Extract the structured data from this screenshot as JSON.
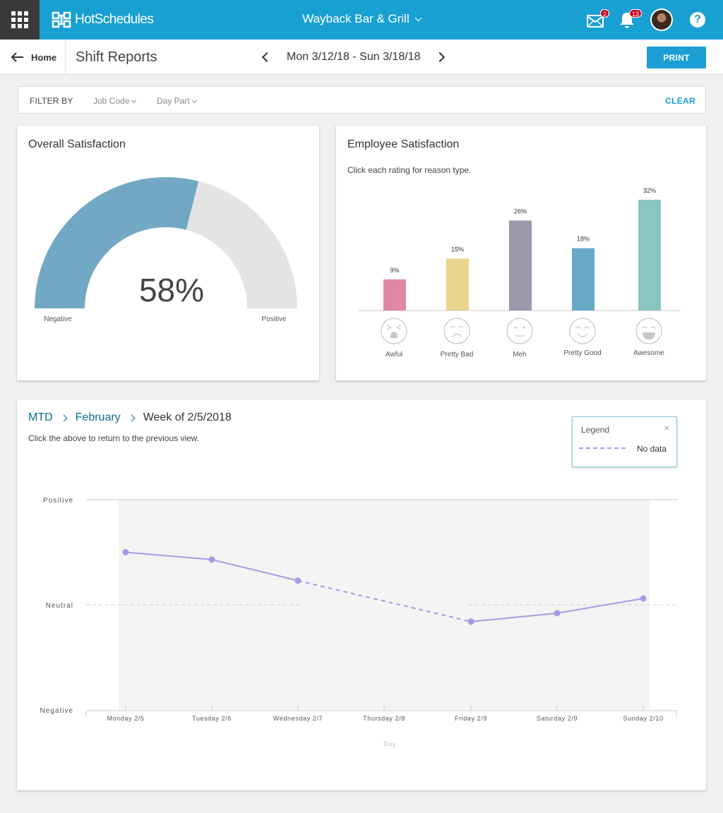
{
  "header": {
    "brand": "HotSchedules",
    "location": "Wayback Bar & Grill",
    "messages_badge": "2",
    "notifications_badge": "13",
    "help_label": "?"
  },
  "subheader": {
    "home_label": "Home",
    "page_title": "Shift Reports",
    "date_range": "Mon 3/12/18 - Sun 3/18/18",
    "print_label": "PRINT"
  },
  "filter": {
    "label": "FILTER BY",
    "job_code": "Job Code",
    "day_part": "Day Part",
    "clear_label": "CLEAR"
  },
  "overall": {
    "title": "Overall Satisfaction",
    "value_label": "58%",
    "value": 58,
    "left_label": "Negative",
    "right_label": "Positive",
    "fill_color": "#72a8c4",
    "track_color": "#e4e4e4"
  },
  "employee": {
    "title": "Employee Satisfaction",
    "hint": "Click each rating for reason type."
  },
  "trend": {
    "breadcrumb": [
      "MTD",
      "February"
    ],
    "current": "Week of 2/5/2018",
    "hint": "Click the above to return to the previous view.",
    "legend_title": "Legend",
    "legend_close": "×",
    "legend_item": "No data"
  },
  "chart_data": [
    {
      "type": "bar",
      "title": "Employee Satisfaction",
      "categories": [
        "Awful",
        "Pretty Bad",
        "Meh",
        "Pretty Good",
        "Awesome"
      ],
      "values": [
        9,
        15,
        26,
        18,
        32
      ],
      "value_labels": [
        "9%",
        "15%",
        "26%",
        "18%",
        "32%"
      ],
      "colors": [
        "#e087a4",
        "#ead38a",
        "#9b99ac",
        "#6aa8c8",
        "#8cc4c0"
      ],
      "icons": [
        "awful-face-icon",
        "pretty-bad-face-icon",
        "meh-face-icon",
        "pretty-good-face-icon",
        "awesome-face-icon"
      ],
      "ylim": [
        0,
        32
      ]
    },
    {
      "type": "line",
      "xlabel": "Day",
      "categories": [
        "Monday 2/5",
        "Tuesday 2/6",
        "Wednesday 2/7",
        "Thursday 2/8",
        "Friday 2/9",
        "Saturday 2/9",
        "Sunday 2/10"
      ],
      "y_tick_labels": [
        "Positive",
        "Neutral",
        "Negative"
      ],
      "ylim": [
        -1,
        1
      ],
      "values": [
        0.5,
        0.43,
        0.23,
        null,
        -0.16,
        -0.08,
        0.06
      ],
      "line_color": "#a99be3",
      "no_data_style": "dashed"
    }
  ]
}
